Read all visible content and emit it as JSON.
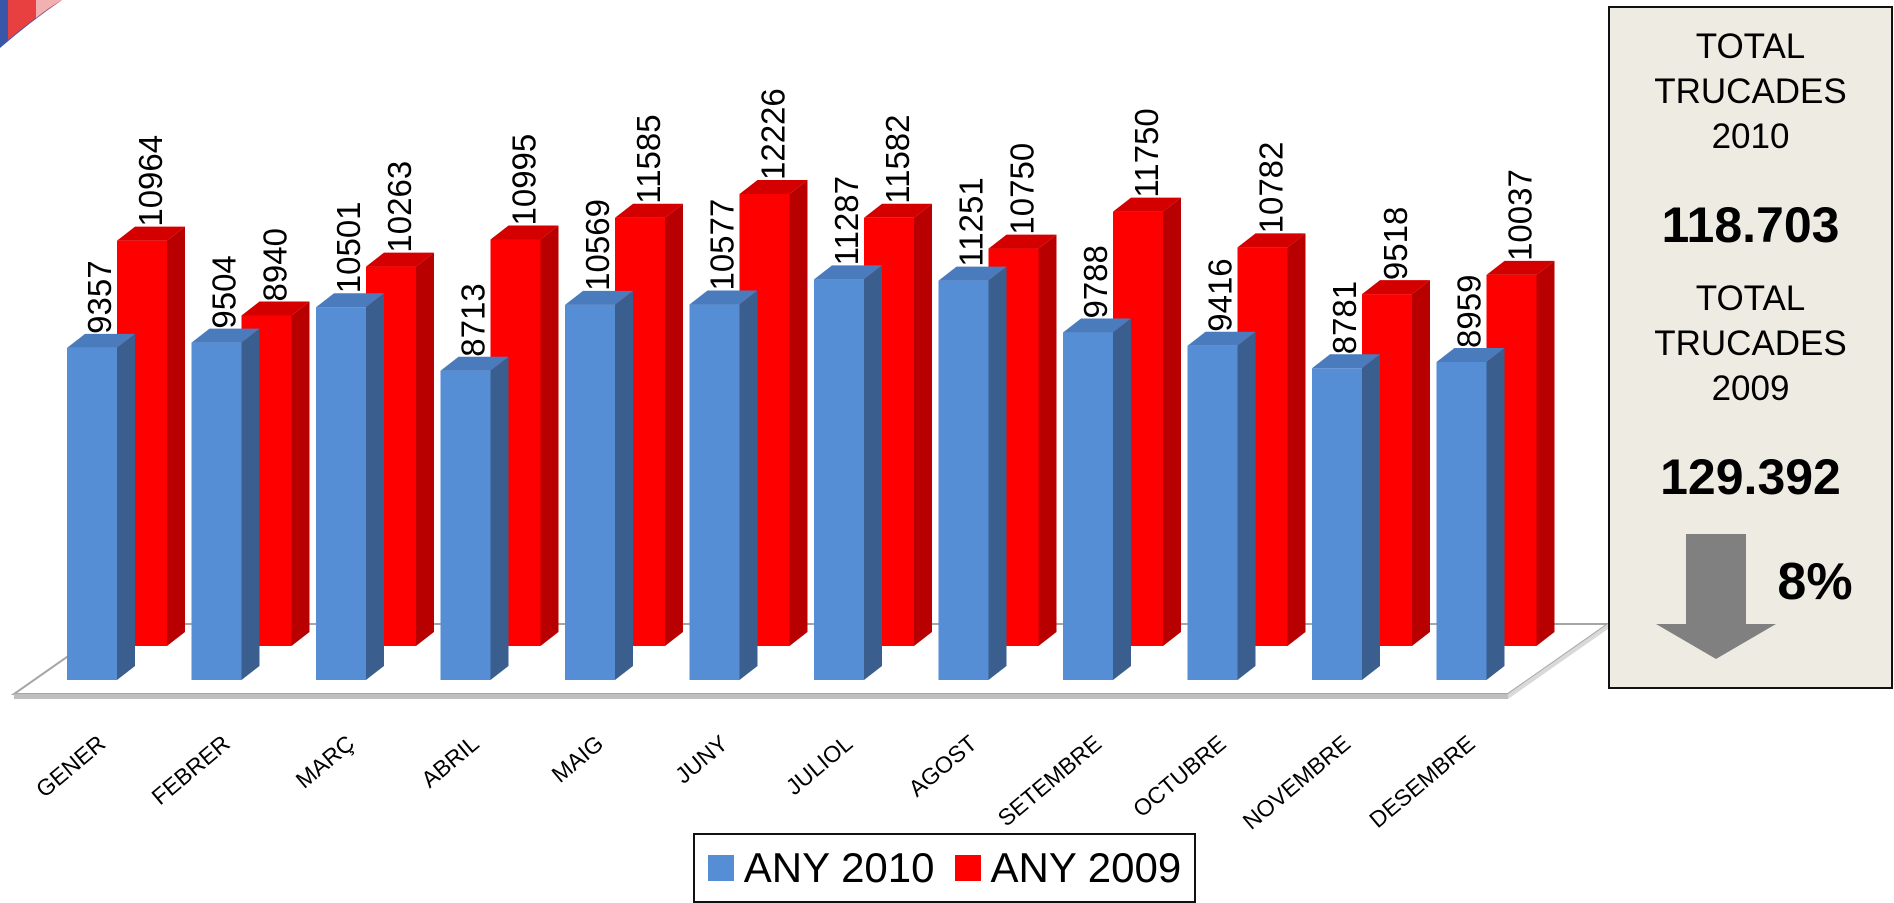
{
  "chart_data": {
    "type": "bar",
    "categories": [
      "GENER",
      "FEBRER",
      "MARÇ",
      "ABRIL",
      "MAIG",
      "JUNY",
      "JULIOL",
      "AGOST",
      "SETEMBRE",
      "OCTUBRE",
      "NOVEMBRE",
      "DESEMBRE"
    ],
    "series": [
      {
        "name": "ANY 2010",
        "color": "#558ed5",
        "values": [
          9357,
          9504,
          10501,
          8713,
          10569,
          10577,
          11287,
          11251,
          9788,
          9416,
          8781,
          8959
        ]
      },
      {
        "name": "ANY 2009",
        "color": "#ff0000",
        "values": [
          10964,
          8940,
          10263,
          10995,
          11585,
          12226,
          11582,
          10750,
          11750,
          10782,
          9518,
          10037
        ]
      }
    ],
    "ylim": [
      0,
      12226
    ],
    "data_labels": true,
    "style": "3d-clustered-column",
    "legend_position": "bottom",
    "grid": false
  },
  "summary": {
    "label_2010": "TOTAL\nTRUCADES\n2010",
    "total_2010": "118.703",
    "label_2009": "TOTAL\nTRUCADES\n2009",
    "total_2009": "129.392",
    "change": "8%",
    "change_direction_icon": "arrow-down-icon",
    "panel_color": "#eeece2",
    "arrow_color": "#808080"
  }
}
